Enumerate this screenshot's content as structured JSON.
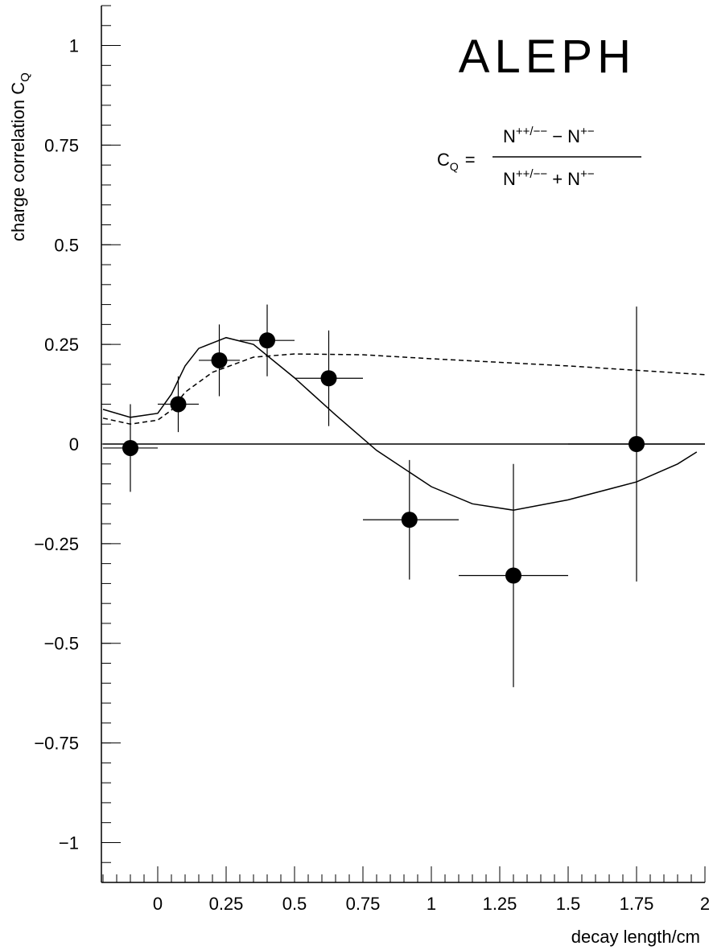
{
  "chart_data": {
    "type": "scatter",
    "annotation": "ALEPH",
    "formula": {
      "lhs": "C",
      "lhs_sub": "Q",
      "eq": "=",
      "numerator": [
        "N",
        "++/−−",
        " − N",
        "+−"
      ],
      "denominator": [
        "N",
        "++/−−",
        " + N",
        "+−"
      ]
    },
    "x_label": "decay length/cm",
    "y_label": {
      "text": "charge correlation C",
      "sub": "Q"
    },
    "xlim": [
      -0.2,
      2
    ],
    "ylim": [
      -1.1,
      1.1
    ],
    "xticks": [
      0,
      0.25,
      0.5,
      0.75,
      1,
      1.25,
      1.5,
      1.75,
      2
    ],
    "yticks": [
      {
        "value": -1,
        "label": "−1"
      },
      {
        "value": -0.75,
        "label": "−0.75"
      },
      {
        "value": -0.5,
        "label": "−0.5"
      },
      {
        "value": -0.25,
        "label": "−0.25"
      },
      0,
      0.25,
      0.5,
      0.75,
      1
    ],
    "xminor": 0.05,
    "yminor": 0.05,
    "reference_line": 0,
    "color": "#000000",
    "points": {
      "x": [
        -0.1,
        0.075,
        0.225,
        0.4,
        0.625,
        0.92,
        1.3,
        1.75
      ],
      "y": [
        -0.01,
        0.1,
        0.21,
        0.26,
        0.165,
        -0.19,
        -0.33,
        0
      ],
      "x_low": [
        -0.2,
        0,
        0.15,
        0.3,
        0.5,
        0.75,
        1.1,
        1.5
      ],
      "x_high": [
        0,
        0.15,
        0.3,
        0.5,
        0.75,
        1.1,
        1.5,
        2
      ],
      "y_err": [
        0.11,
        0.07,
        0.09,
        0.09,
        0.12,
        0.15,
        0.28,
        0.345
      ]
    },
    "curves": [
      {
        "style": "solid",
        "x": [
          -0.2,
          -0.1,
          0,
          0.05,
          0.1,
          0.15,
          0.25,
          0.35,
          0.5,
          0.65,
          0.8,
          1.0,
          1.15,
          1.3,
          1.5,
          1.75,
          1.9,
          1.97
        ],
        "y": [
          0.087,
          0.067,
          0.077,
          0.125,
          0.196,
          0.24,
          0.267,
          0.25,
          0.166,
          0.073,
          -0.016,
          -0.107,
          -0.15,
          -0.166,
          -0.14,
          -0.095,
          -0.05,
          -0.02
        ]
      },
      {
        "style": "dashed",
        "x": [
          -0.2,
          -0.1,
          0,
          0.05,
          0.1,
          0.2,
          0.35,
          0.5,
          0.75,
          1.0,
          1.5,
          2
        ],
        "y": [
          0.065,
          0.05,
          0.06,
          0.085,
          0.13,
          0.18,
          0.218,
          0.226,
          0.224,
          0.214,
          0.196,
          0.174
        ]
      }
    ]
  }
}
